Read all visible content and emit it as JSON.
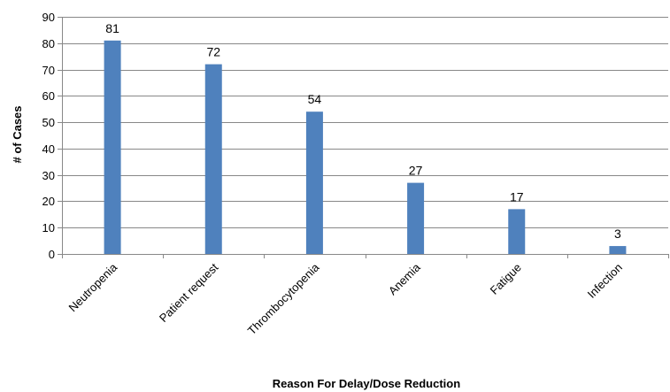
{
  "chart_data": {
    "type": "bar",
    "title": "",
    "xlabel": "Reason For Delay/Dose Reduction",
    "ylabel": "# of Cases",
    "categories": [
      "Neutropenia",
      "Patient request",
      "Thrombocytopenia",
      "Anemia",
      "Fatigue",
      "Infection"
    ],
    "values": [
      81,
      72,
      54,
      27,
      17,
      3
    ],
    "ylim": [
      0,
      90
    ],
    "yticks": [
      0,
      10,
      20,
      30,
      40,
      50,
      60,
      70,
      80,
      90
    ],
    "grid": true,
    "legend": "none",
    "data_labels": true
  },
  "colors": {
    "bar": "#4F81BD",
    "grid": "#888888",
    "axis": "#888888"
  }
}
